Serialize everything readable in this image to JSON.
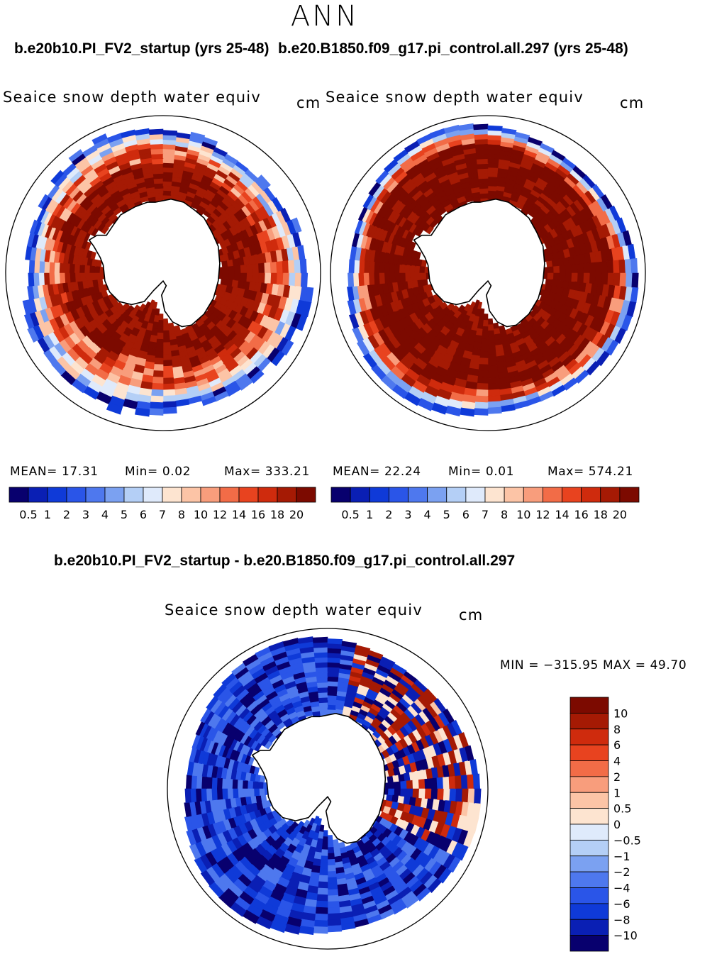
{
  "season": "ANN",
  "colors": {
    "cmap": [
      "#08006e",
      "#0a1fb4",
      "#0f3ad8",
      "#2a55e8",
      "#4e78ee",
      "#7ba1f1",
      "#b4cff6",
      "#dfeafb",
      "#fde4d0",
      "#fcc4a6",
      "#f89d7c",
      "#f26c47",
      "#e8431f",
      "#cf2b0d",
      "#a51a04",
      "#7c0a00"
    ],
    "land": "#ffffff",
    "coast": "#000000"
  },
  "panels": [
    {
      "case": "b.e20b10.PI_FV2_startup (yrs 25-48)",
      "field": "Seaice snow depth water equiv",
      "units": "cm",
      "stats": {
        "mean": "MEAN=   17.31",
        "min": "Min=    0.02",
        "max": "Max= 333.21"
      }
    },
    {
      "case": "b.e20.B1850.f09_g17.pi_control.all.297 (yrs 25-48)",
      "field": "Seaice snow depth water equiv",
      "units": "cm",
      "stats": {
        "mean": "MEAN=   22.24",
        "min": "Min=    0.01",
        "max": "Max= 574.21"
      }
    }
  ],
  "abs_levels": [
    "0.5",
    "1",
    "2",
    "3",
    "4",
    "5",
    "6",
    "7",
    "8",
    "10",
    "12",
    "14",
    "16",
    "18",
    "20"
  ],
  "diff": {
    "title": "b.e20b10.PI_FV2_startup - b.e20.B1850.f09_g17.pi_control.all.297",
    "field": "Seaice snow depth water equiv",
    "units": "cm",
    "minmax": "MIN = −315.95 MAX =   49.70",
    "levels": [
      "10",
      "8",
      "6",
      "4",
      "2",
      "1",
      "0.5",
      "0",
      "−0.5",
      "−1",
      "−2",
      "−4",
      "−6",
      "−8",
      "−10"
    ]
  }
}
